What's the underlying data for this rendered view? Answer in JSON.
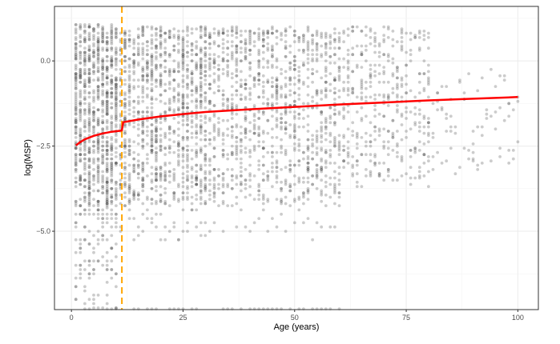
{
  "chart_data": {
    "type": "scatter",
    "xlabel": "Age (years)",
    "ylabel": "log(MSP)",
    "xlim": [
      -3.8,
      104.6
    ],
    "ylim": [
      -7.3,
      1.6
    ],
    "x_ticks": [
      0,
      25,
      50,
      75,
      100
    ],
    "x_tick_labels": [
      "0",
      "25",
      "50",
      "75",
      "100"
    ],
    "y_ticks": [
      0.0,
      -2.5,
      -5.0
    ],
    "y_tick_labels": [
      "0.0",
      "-2.5",
      "-5.0"
    ],
    "grid": true,
    "threshold_line": {
      "x": 11.3,
      "color": "#FFA500",
      "style": "dashed"
    },
    "point_color": "#555555",
    "scatter_bands": [
      {
        "x_from": 1,
        "x_to": 10,
        "y_min": -4.3,
        "y_max": 1.1,
        "n_per_age": 90,
        "tail_min": -7.3,
        "tail_n": 12
      },
      {
        "x_from": 11,
        "x_to": 30,
        "y_min": -4.2,
        "y_max": 1.0,
        "n_per_age": 55,
        "tail_min": -5.3,
        "tail_n": 2
      },
      {
        "x_from": 31,
        "x_to": 60,
        "y_min": -4.2,
        "y_max": 1.0,
        "n_per_age": 35,
        "tail_min": -5.3,
        "tail_n": 1
      },
      {
        "x_from": 61,
        "x_to": 80,
        "y_min": -3.7,
        "y_max": 1.0,
        "n_per_age": 18,
        "tail_min": -4.2,
        "tail_n": 0
      },
      {
        "x_from": 81,
        "x_to": 100,
        "y_min": -3.4,
        "y_max": -0.2,
        "n_per_age": 4,
        "tail_min": -3.4,
        "tail_n": 0
      }
    ],
    "fit_line": {
      "color": "#FF0000",
      "x": [
        1,
        2,
        3,
        5,
        7,
        9,
        11,
        11.3,
        11.6,
        15,
        20,
        25,
        30,
        40,
        50,
        60,
        70,
        80,
        90,
        100
      ],
      "y": [
        -2.48,
        -2.38,
        -2.3,
        -2.2,
        -2.13,
        -2.08,
        -2.05,
        -2.04,
        -1.8,
        -1.72,
        -1.63,
        -1.56,
        -1.5,
        -1.42,
        -1.35,
        -1.28,
        -1.22,
        -1.16,
        -1.11,
        -1.06
      ]
    }
  }
}
